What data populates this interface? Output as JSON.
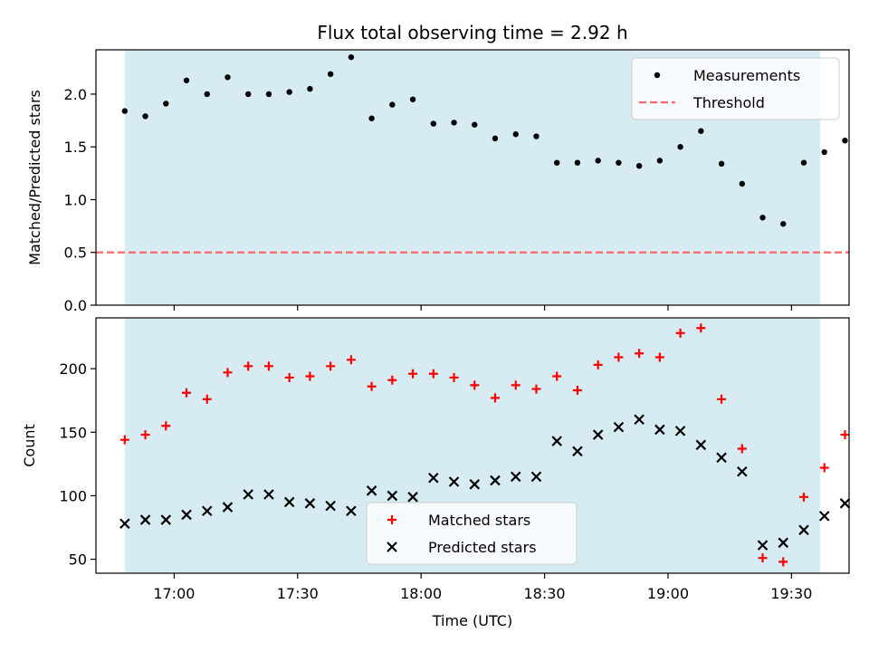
{
  "colors": {
    "shade": "#add8e6",
    "measurement": "#000000",
    "threshold": "#ff6666",
    "matched": "#ff0000",
    "predicted": "#000000"
  },
  "chart_data": [
    {
      "type": "scatter",
      "title": "Flux total observing time = 2.92 h",
      "xlabel": "",
      "ylabel": "Matched/Predicted stars",
      "xlim": [
        "16:41",
        "19:44"
      ],
      "ylim": [
        0,
        2.42
      ],
      "yticks": [
        "0.0",
        "0.5",
        "1.0",
        "1.5",
        "2.0"
      ],
      "shaded_x_range": [
        "16:48",
        "19:37"
      ],
      "legend": {
        "placement": "upper right",
        "entries": [
          "Measurements",
          "Threshold"
        ]
      },
      "threshold": {
        "name": "Threshold",
        "value": 0.5,
        "style": "dashed"
      },
      "series": [
        {
          "name": "Measurements",
          "marker": "dot",
          "points": [
            [
              "16:48",
              1.84
            ],
            [
              "16:53",
              1.79
            ],
            [
              "16:58",
              1.91
            ],
            [
              "17:03",
              2.13
            ],
            [
              "17:08",
              2.0
            ],
            [
              "17:13",
              2.16
            ],
            [
              "17:18",
              2.0
            ],
            [
              "17:23",
              2.0
            ],
            [
              "17:28",
              2.02
            ],
            [
              "17:33",
              2.05
            ],
            [
              "17:38",
              2.19
            ],
            [
              "17:43",
              2.35
            ],
            [
              "17:48",
              1.77
            ],
            [
              "17:53",
              1.9
            ],
            [
              "17:58",
              1.95
            ],
            [
              "18:03",
              1.72
            ],
            [
              "18:08",
              1.73
            ],
            [
              "18:13",
              1.71
            ],
            [
              "18:18",
              1.58
            ],
            [
              "18:23",
              1.62
            ],
            [
              "18:28",
              1.6
            ],
            [
              "18:33",
              1.35
            ],
            [
              "18:38",
              1.35
            ],
            [
              "18:43",
              1.37
            ],
            [
              "18:48",
              1.35
            ],
            [
              "18:53",
              1.32
            ],
            [
              "18:58",
              1.37
            ],
            [
              "19:03",
              1.5
            ],
            [
              "19:08",
              1.65
            ],
            [
              "19:13",
              1.34
            ],
            [
              "19:18",
              1.15
            ],
            [
              "19:23",
              0.83
            ],
            [
              "19:28",
              0.77
            ],
            [
              "19:33",
              1.35
            ],
            [
              "19:38",
              1.45
            ],
            [
              "19:43",
              1.56
            ]
          ]
        }
      ]
    },
    {
      "type": "scatter",
      "title": "",
      "xlabel": "Time (UTC)",
      "ylabel": "Count",
      "xlim": [
        "16:41",
        "19:44"
      ],
      "ylim": [
        39,
        240
      ],
      "yticks": [
        "50",
        "100",
        "150",
        "200"
      ],
      "xticks": [
        "17:00",
        "17:30",
        "18:00",
        "18:30",
        "19:00",
        "19:30"
      ],
      "shaded_x_range": [
        "16:48",
        "19:37"
      ],
      "legend": {
        "placement": "lower center",
        "entries": [
          "Matched stars",
          "Predicted stars"
        ]
      },
      "series": [
        {
          "name": "Matched stars",
          "marker": "plus",
          "points": [
            [
              "16:48",
              144
            ],
            [
              "16:53",
              148
            ],
            [
              "16:58",
              155
            ],
            [
              "17:03",
              181
            ],
            [
              "17:08",
              176
            ],
            [
              "17:13",
              197
            ],
            [
              "17:18",
              202
            ],
            [
              "17:23",
              202
            ],
            [
              "17:28",
              193
            ],
            [
              "17:33",
              194
            ],
            [
              "17:38",
              202
            ],
            [
              "17:43",
              207
            ],
            [
              "17:48",
              186
            ],
            [
              "17:53",
              191
            ],
            [
              "17:58",
              196
            ],
            [
              "18:03",
              196
            ],
            [
              "18:08",
              193
            ],
            [
              "18:13",
              187
            ],
            [
              "18:18",
              177
            ],
            [
              "18:23",
              187
            ],
            [
              "18:28",
              184
            ],
            [
              "18:33",
              194
            ],
            [
              "18:38",
              183
            ],
            [
              "18:43",
              203
            ],
            [
              "18:48",
              209
            ],
            [
              "18:53",
              212
            ],
            [
              "18:58",
              209
            ],
            [
              "19:03",
              228
            ],
            [
              "19:08",
              232
            ],
            [
              "19:13",
              176
            ],
            [
              "19:18",
              137
            ],
            [
              "19:23",
              51
            ],
            [
              "19:28",
              48
            ],
            [
              "19:33",
              99
            ],
            [
              "19:38",
              122
            ],
            [
              "19:43",
              148
            ]
          ]
        },
        {
          "name": "Predicted stars",
          "marker": "x",
          "points": [
            [
              "16:48",
              78
            ],
            [
              "16:53",
              81
            ],
            [
              "16:58",
              81
            ],
            [
              "17:03",
              85
            ],
            [
              "17:08",
              88
            ],
            [
              "17:13",
              91
            ],
            [
              "17:18",
              101
            ],
            [
              "17:23",
              101
            ],
            [
              "17:28",
              95
            ],
            [
              "17:33",
              94
            ],
            [
              "17:38",
              92
            ],
            [
              "17:43",
              88
            ],
            [
              "17:48",
              104
            ],
            [
              "17:53",
              100
            ],
            [
              "17:58",
              99
            ],
            [
              "18:03",
              114
            ],
            [
              "18:08",
              111
            ],
            [
              "18:13",
              109
            ],
            [
              "18:18",
              112
            ],
            [
              "18:23",
              115
            ],
            [
              "18:28",
              115
            ],
            [
              "18:33",
              143
            ],
            [
              "18:38",
              135
            ],
            [
              "18:43",
              148
            ],
            [
              "18:48",
              154
            ],
            [
              "18:53",
              160
            ],
            [
              "18:58",
              152
            ],
            [
              "19:03",
              151
            ],
            [
              "19:08",
              140
            ],
            [
              "19:13",
              130
            ],
            [
              "19:18",
              119
            ],
            [
              "19:23",
              61
            ],
            [
              "19:28",
              63
            ],
            [
              "19:33",
              73
            ],
            [
              "19:38",
              84
            ],
            [
              "19:43",
              94
            ]
          ]
        }
      ]
    }
  ]
}
